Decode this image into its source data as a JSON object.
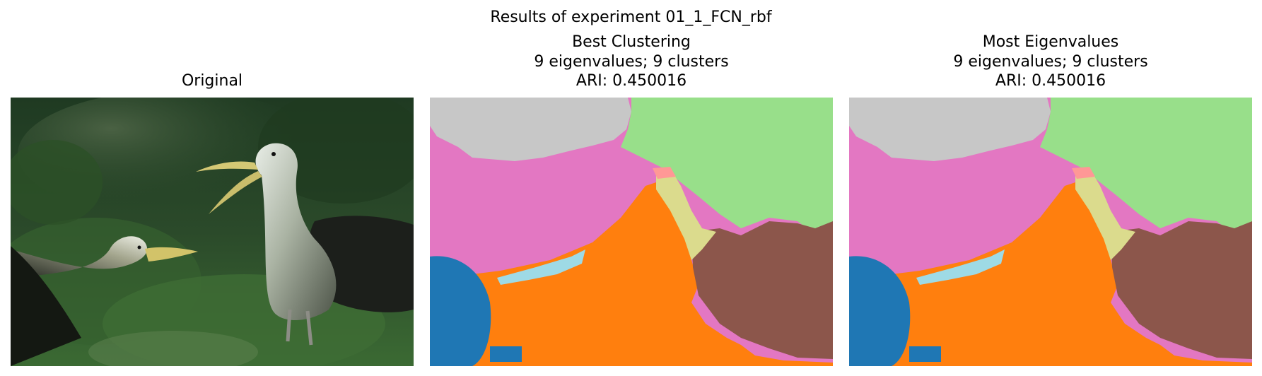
{
  "figure": {
    "suptitle": "Results of experiment 01_1_FCN_rbf",
    "panels": [
      {
        "title_lines": [
          "Original"
        ]
      },
      {
        "title_lines": [
          "Best Clustering",
          "9 eigenvalues; 9 clusters",
          "ARI: 0.450016"
        ]
      },
      {
        "title_lines": [
          "Most Eigenvalues",
          "9 eigenvalues; 9 clusters",
          "ARI: 0.450016"
        ]
      }
    ]
  },
  "segmentation_colors": {
    "gray": "#c7c7c7",
    "green": "#98df8a",
    "pink": "#e377c2",
    "salmon": "#ff9896",
    "khaki": "#dbdb8d",
    "orange": "#ff7f0e",
    "brown": "#8c564b",
    "blue": "#1f77b4",
    "lightblue": "#9edae5"
  }
}
